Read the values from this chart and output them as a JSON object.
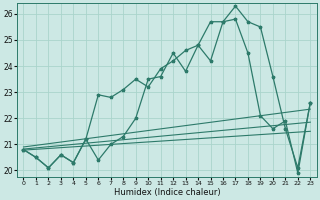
{
  "xlabel": "Humidex (Indice chaleur)",
  "background_color": "#cce8e4",
  "line_color": "#2d7a6a",
  "grid_color": "#aad4cc",
  "xlim": [
    -0.5,
    23.5
  ],
  "ylim": [
    19.75,
    26.4
  ],
  "yticks": [
    20,
    21,
    22,
    23,
    24,
    25,
    26
  ],
  "xticks": [
    0,
    1,
    2,
    3,
    4,
    5,
    6,
    7,
    8,
    9,
    10,
    11,
    12,
    13,
    14,
    15,
    16,
    17,
    18,
    19,
    20,
    21,
    22,
    23
  ],
  "series1_x": [
    0,
    1,
    2,
    3,
    4,
    5,
    6,
    7,
    8,
    9,
    10,
    11,
    12,
    13,
    14,
    15,
    16,
    17,
    18,
    19,
    20,
    21,
    22,
    23
  ],
  "series1_y": [
    20.8,
    20.5,
    20.1,
    20.6,
    20.3,
    21.2,
    22.9,
    22.8,
    23.1,
    23.5,
    23.2,
    23.9,
    24.2,
    24.6,
    24.8,
    25.7,
    25.7,
    25.8,
    24.5,
    22.1,
    21.6,
    21.9,
    19.9,
    22.6
  ],
  "series2_x": [
    0,
    1,
    2,
    3,
    4,
    5,
    6,
    7,
    8,
    9,
    10,
    11,
    12,
    13,
    14,
    15,
    16,
    17,
    18,
    19,
    20,
    21,
    22,
    23
  ],
  "series2_y": [
    20.8,
    20.5,
    20.1,
    20.6,
    20.3,
    21.2,
    20.4,
    21.0,
    21.3,
    22.0,
    23.5,
    23.6,
    24.5,
    23.8,
    24.8,
    24.2,
    25.7,
    26.3,
    25.7,
    25.5,
    23.6,
    21.6,
    20.1,
    22.6
  ],
  "lin1_start": 20.9,
  "lin1_end": 22.35,
  "lin2_start": 20.82,
  "lin2_end": 21.85,
  "lin3_start": 20.78,
  "lin3_end": 21.5
}
